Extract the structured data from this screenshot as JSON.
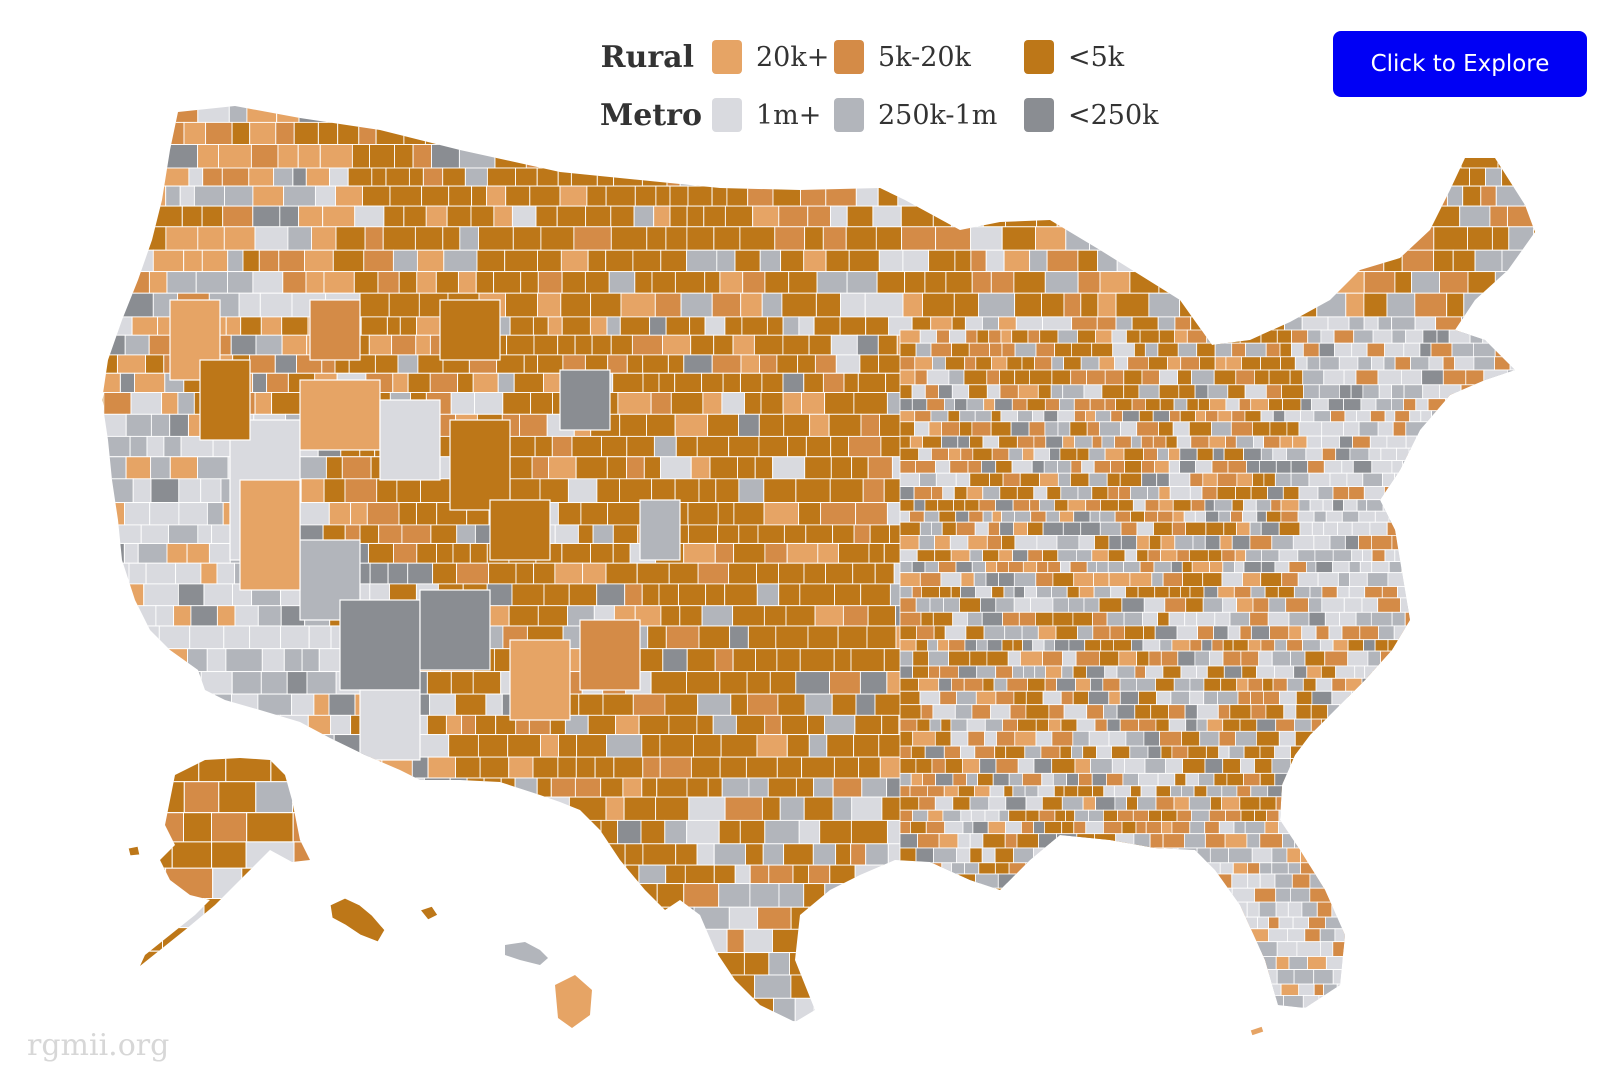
{
  "title": "",
  "explore_button": {
    "label": "Click to Explore"
  },
  "watermark": "rgmii.org",
  "legend": {
    "rural": {
      "title": "Rural",
      "items": [
        {
          "label": "20k+",
          "color": "#e6a465"
        },
        {
          "label": "5k-20k",
          "color": "#d48b47"
        },
        {
          "label": "<5k",
          "color": "#bd7718"
        }
      ]
    },
    "metro": {
      "title": "Metro",
      "items": [
        {
          "label": "1m+",
          "color": "#d9dadf"
        },
        {
          "label": "250k-1m",
          "color": "#b2b5bb"
        },
        {
          "label": "<250k",
          "color": "#8a8d92"
        }
      ]
    }
  },
  "map": {
    "regions": [
      "contiguous-us",
      "alaska",
      "hawaii"
    ],
    "background": "#ffffff",
    "border_color": "#ffffff"
  }
}
